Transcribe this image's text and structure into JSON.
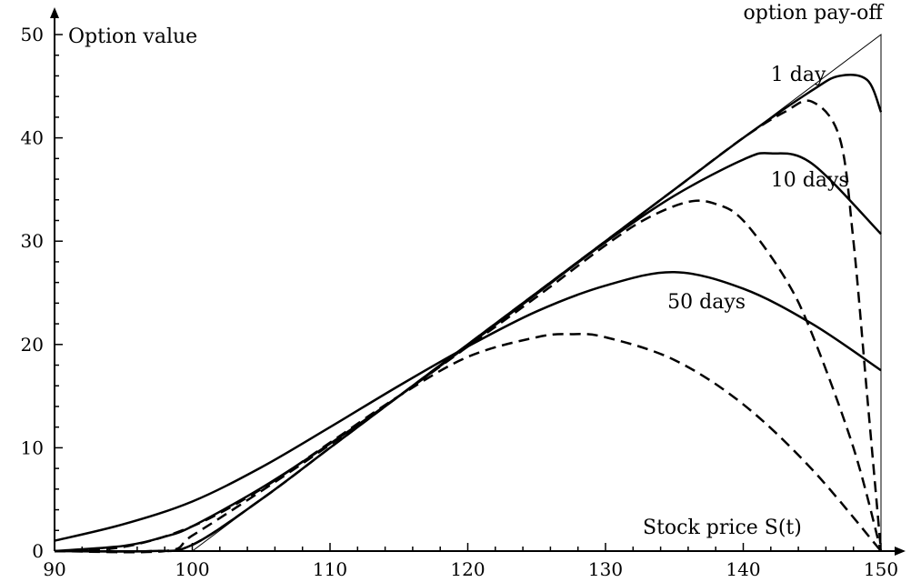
{
  "chart_data": {
    "type": "line",
    "title": "",
    "xlabel": "Stock price S(t)",
    "ylabel": "Option value",
    "xlim": [
      90,
      150
    ],
    "ylim": [
      0,
      50
    ],
    "x_ticks": [
      90,
      100,
      110,
      120,
      130,
      140,
      150
    ],
    "y_ticks": [
      0,
      10,
      20,
      30,
      40,
      50
    ],
    "grid": false,
    "annotations": [
      {
        "text": "option pay-off",
        "x": 140,
        "y": 51.5
      },
      {
        "text": "1 day",
        "x": 142,
        "y": 45.5
      },
      {
        "text": "10 days",
        "x": 142,
        "y": 35.3
      },
      {
        "text": "50 days",
        "x": 134.5,
        "y": 23.5
      }
    ],
    "payoff": {
      "x": [
        90,
        100,
        150,
        150
      ],
      "y": [
        0,
        0,
        50,
        0
      ]
    },
    "series": [
      {
        "style": "solid",
        "x": [
          90,
          95,
          100,
          105,
          110,
          115,
          120,
          125,
          130,
          135,
          140,
          145,
          150
        ],
        "y": [
          1.0,
          2.6,
          4.8,
          8.1,
          12.0,
          16.0,
          19.8,
          23.2,
          25.7,
          27.0,
          25.4,
          22.0,
          17.5
        ]
      },
      {
        "style": "solid",
        "x": [
          90,
          95,
          98,
          100,
          105,
          110,
          115,
          120,
          125,
          130,
          135,
          140,
          142,
          145,
          150
        ],
        "y": [
          0.0,
          0.5,
          1.4,
          2.4,
          6.1,
          10.4,
          15.0,
          19.9,
          24.9,
          29.9,
          34.4,
          37.9,
          38.5,
          37.5,
          30.7
        ]
      },
      {
        "style": "solid",
        "x": [
          90,
          97,
          100,
          105,
          110,
          115,
          120,
          125,
          130,
          135,
          140,
          145,
          147,
          149,
          150
        ],
        "y": [
          0.0,
          0.0,
          0.6,
          5.0,
          10.0,
          15.0,
          20.0,
          25.0,
          30.0,
          35.0,
          40.0,
          44.6,
          46.0,
          45.6,
          42.5
        ]
      },
      {
        "style": "dashed",
        "x": [
          90,
          97,
          100,
          105,
          110,
          115,
          120,
          125,
          130,
          135,
          140,
          143,
          145,
          147,
          148,
          149,
          150
        ],
        "y": [
          0.0,
          0.0,
          0.6,
          5.0,
          10.0,
          15.0,
          20.0,
          25.0,
          30.0,
          35.0,
          40.0,
          42.5,
          43.5,
          40.0,
          30.0,
          15.0,
          0.0
        ]
      },
      {
        "style": "dashed",
        "x": [
          90,
          98,
          100,
          105,
          110,
          115,
          120,
          125,
          130,
          133,
          136,
          138,
          140,
          143,
          145,
          148,
          150
        ],
        "y": [
          0.0,
          0.0,
          1.5,
          5.8,
          10.3,
          15.0,
          19.8,
          24.6,
          29.6,
          32.2,
          33.8,
          33.6,
          32.0,
          26.5,
          21.0,
          10.0,
          0.0
        ]
      },
      {
        "style": "dashed",
        "x": [
          90,
          95,
          100,
          105,
          110,
          115,
          120,
          125,
          127.5,
          130,
          135,
          140,
          145,
          150
        ],
        "y": [
          0.0,
          0.4,
          2.4,
          6.0,
          10.5,
          15.0,
          18.8,
          20.7,
          21.0,
          20.7,
          18.5,
          14.2,
          7.9,
          0.0
        ]
      }
    ]
  }
}
